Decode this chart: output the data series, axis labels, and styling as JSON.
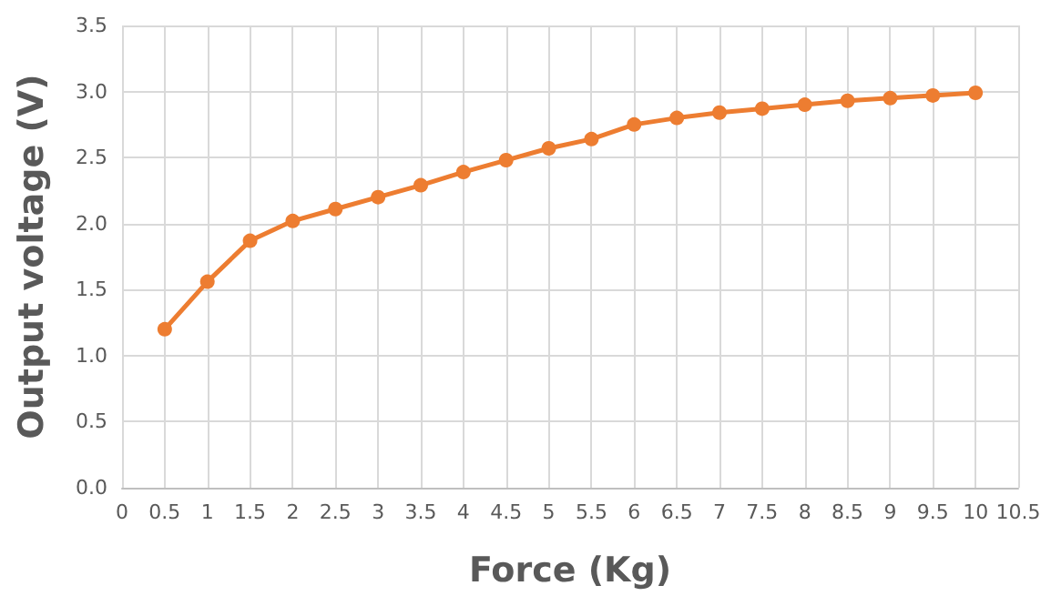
{
  "chart_data": {
    "type": "line",
    "xlabel": "Force (Kg)",
    "ylabel": "Output voltage (V)",
    "x": [
      0.5,
      1,
      1.5,
      2,
      2.5,
      3,
      3.5,
      4,
      4.5,
      5,
      5.5,
      6,
      6.5,
      7,
      7.5,
      8,
      8.5,
      9,
      9.5,
      10
    ],
    "series": [
      {
        "color": "#ed7d31",
        "values": [
          1.2,
          1.56,
          1.87,
          2.02,
          2.11,
          2.2,
          2.29,
          2.39,
          2.48,
          2.57,
          2.64,
          2.75,
          2.8,
          2.84,
          2.87,
          2.9,
          2.93,
          2.95,
          2.97,
          2.99
        ]
      }
    ],
    "xlim": [
      0,
      10.5
    ],
    "xticks": [
      0,
      0.5,
      1,
      1.5,
      2,
      2.5,
      3,
      3.5,
      4,
      4.5,
      5,
      5.5,
      6,
      6.5,
      7,
      7.5,
      8,
      8.5,
      9,
      9.5,
      10,
      10.5
    ],
    "ylim": [
      0,
      3.5
    ],
    "yticks": [
      {
        "value": 0,
        "label": "0.0"
      },
      {
        "value": 0.5,
        "label": "0.5"
      },
      {
        "value": 1,
        "label": "1.0"
      },
      {
        "value": 1.5,
        "label": "1.5"
      },
      {
        "value": 2,
        "label": "2.0"
      },
      {
        "value": 2.5,
        "label": "2.5"
      },
      {
        "value": 3,
        "label": "3.0"
      },
      {
        "value": 3.5,
        "label": "3.5"
      }
    ],
    "grid": true,
    "marker": "circle",
    "line_style": "solid"
  }
}
